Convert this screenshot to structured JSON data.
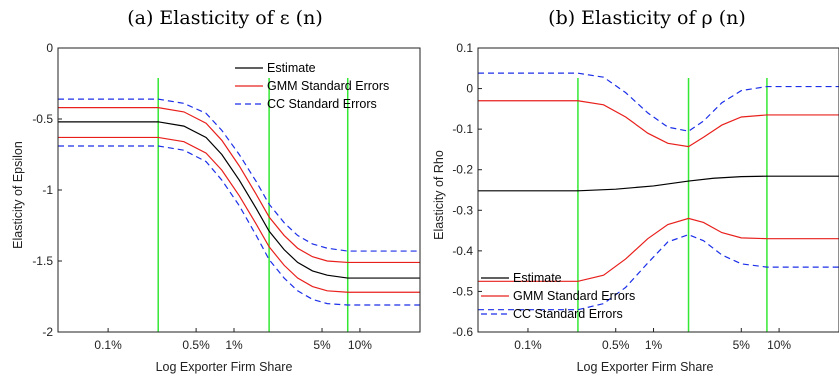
{
  "chart_data": [
    {
      "type": "line",
      "title": "(a) Elasticity of ε (n)",
      "xlabel": "Log Exporter Firm Share",
      "ylabel": "Elasticity of Epsilon",
      "x_scale": "log",
      "xlim": [
        0.0004,
        0.3
      ],
      "ylim": [
        -2,
        0
      ],
      "x_ticks": [
        0.001,
        0.005,
        0.01,
        0.05,
        0.1
      ],
      "x_tick_labels": [
        "0.1%",
        "0.5%",
        "1%",
        "5%",
        "10%"
      ],
      "y_ticks": [
        -2,
        -1.5,
        -1,
        -0.5,
        0
      ],
      "y_tick_labels": [
        "-2",
        "-1.5",
        "-1",
        "-0.5",
        "0"
      ],
      "vlines": [
        0.0025,
        0.019,
        0.08
      ],
      "legend": {
        "placement": "top-right",
        "entries": [
          "Estimate",
          "GMM Standard Errors",
          "CC Standard Errors"
        ]
      },
      "series": [
        {
          "name": "Estimate",
          "color": "#000000",
          "dash": "solid",
          "x": [
            0.0004,
            0.0025,
            0.004,
            0.006,
            0.008,
            0.011,
            0.015,
            0.019,
            0.025,
            0.032,
            0.042,
            0.055,
            0.08,
            0.3
          ],
          "y": [
            -0.52,
            -0.52,
            -0.55,
            -0.63,
            -0.75,
            -0.93,
            -1.13,
            -1.29,
            -1.42,
            -1.51,
            -1.57,
            -1.6,
            -1.62,
            -1.62
          ]
        },
        {
          "name": "GMM Standard Errors",
          "color": "#e8201c",
          "dash": "solid",
          "x": [
            0.0004,
            0.0025,
            0.004,
            0.006,
            0.008,
            0.011,
            0.015,
            0.019,
            0.025,
            0.032,
            0.042,
            0.055,
            0.08,
            0.3
          ],
          "y": [
            -0.42,
            -0.42,
            -0.45,
            -0.53,
            -0.65,
            -0.83,
            -1.03,
            -1.19,
            -1.32,
            -1.41,
            -1.47,
            -1.5,
            -1.51,
            -1.51
          ]
        },
        {
          "name": "",
          "color": "#e8201c",
          "dash": "solid",
          "x": [
            0.0004,
            0.0025,
            0.004,
            0.006,
            0.008,
            0.011,
            0.015,
            0.019,
            0.025,
            0.032,
            0.042,
            0.055,
            0.08,
            0.3
          ],
          "y": [
            -0.63,
            -0.63,
            -0.66,
            -0.74,
            -0.86,
            -1.04,
            -1.24,
            -1.4,
            -1.53,
            -1.62,
            -1.68,
            -1.71,
            -1.72,
            -1.72
          ]
        },
        {
          "name": "CC Standard Errors",
          "color": "#1c2fe8",
          "dash": "dashed",
          "x": [
            0.0004,
            0.0025,
            0.004,
            0.006,
            0.008,
            0.011,
            0.015,
            0.019,
            0.025,
            0.032,
            0.042,
            0.055,
            0.08,
            0.3
          ],
          "y": [
            -0.36,
            -0.36,
            -0.39,
            -0.46,
            -0.58,
            -0.75,
            -0.94,
            -1.1,
            -1.23,
            -1.32,
            -1.38,
            -1.41,
            -1.43,
            -1.43
          ]
        },
        {
          "name": "",
          "color": "#1c2fe8",
          "dash": "dashed",
          "x": [
            0.0004,
            0.0025,
            0.004,
            0.006,
            0.008,
            0.011,
            0.015,
            0.019,
            0.025,
            0.032,
            0.042,
            0.055,
            0.08,
            0.3
          ],
          "y": [
            -0.69,
            -0.69,
            -0.72,
            -0.8,
            -0.93,
            -1.11,
            -1.32,
            -1.49,
            -1.62,
            -1.71,
            -1.77,
            -1.8,
            -1.81,
            -1.81
          ]
        }
      ]
    },
    {
      "type": "line",
      "title": "(b) Elasticity of ρ (n)",
      "xlabel": "Log Exporter Firm Share",
      "ylabel": "Elasticity of Rho",
      "x_scale": "log",
      "xlim": [
        0.0004,
        0.3
      ],
      "ylim": [
        -0.6,
        0.1
      ],
      "x_ticks": [
        0.001,
        0.005,
        0.01,
        0.05,
        0.1
      ],
      "x_tick_labels": [
        "0.1%",
        "0.5%",
        "1%",
        "5%",
        "10%"
      ],
      "y_ticks": [
        -0.6,
        -0.5,
        -0.4,
        -0.3,
        -0.2,
        -0.1,
        0,
        0.1
      ],
      "y_tick_labels": [
        "-0.6",
        "-0.5",
        "-0.4",
        "-0.3",
        "-0.2",
        "-0.1",
        "0",
        "0.1"
      ],
      "vlines": [
        0.0025,
        0.019,
        0.08
      ],
      "legend": {
        "placement": "bottom-left",
        "entries": [
          "Estimate",
          "GMM Standard Errors",
          "CC Standard Errors"
        ]
      },
      "series": [
        {
          "name": "Estimate",
          "color": "#000000",
          "dash": "solid",
          "x": [
            0.0004,
            0.0025,
            0.005,
            0.01,
            0.019,
            0.03,
            0.05,
            0.08,
            0.3
          ],
          "y": [
            -0.252,
            -0.252,
            -0.248,
            -0.24,
            -0.228,
            -0.221,
            -0.217,
            -0.216,
            -0.216
          ]
        },
        {
          "name": "GMM Standard Errors",
          "color": "#e8201c",
          "dash": "solid",
          "x": [
            0.0004,
            0.0025,
            0.004,
            0.006,
            0.009,
            0.013,
            0.019,
            0.025,
            0.035,
            0.05,
            0.08,
            0.3
          ],
          "y": [
            -0.03,
            -0.03,
            -0.04,
            -0.07,
            -0.11,
            -0.135,
            -0.143,
            -0.12,
            -0.09,
            -0.07,
            -0.065,
            -0.065
          ]
        },
        {
          "name": "",
          "color": "#e8201c",
          "dash": "solid",
          "x": [
            0.0004,
            0.0025,
            0.004,
            0.006,
            0.009,
            0.013,
            0.019,
            0.025,
            0.035,
            0.05,
            0.08,
            0.3
          ],
          "y": [
            -0.475,
            -0.475,
            -0.46,
            -0.42,
            -0.37,
            -0.335,
            -0.32,
            -0.33,
            -0.355,
            -0.368,
            -0.37,
            -0.37
          ]
        },
        {
          "name": "CC Standard Errors",
          "color": "#1c2fe8",
          "dash": "dashed",
          "x": [
            0.0004,
            0.0025,
            0.004,
            0.006,
            0.009,
            0.013,
            0.019,
            0.025,
            0.035,
            0.05,
            0.08,
            0.3
          ],
          "y": [
            0.038,
            0.038,
            0.028,
            -0.01,
            -0.06,
            -0.095,
            -0.105,
            -0.08,
            -0.035,
            -0.005,
            0.005,
            0.005
          ]
        },
        {
          "name": "",
          "color": "#1c2fe8",
          "dash": "dashed",
          "x": [
            0.0004,
            0.0025,
            0.004,
            0.006,
            0.009,
            0.013,
            0.019,
            0.025,
            0.035,
            0.05,
            0.08,
            0.3
          ],
          "y": [
            -0.545,
            -0.545,
            -0.53,
            -0.49,
            -0.43,
            -0.378,
            -0.36,
            -0.375,
            -0.41,
            -0.432,
            -0.44,
            -0.44
          ]
        }
      ]
    }
  ]
}
